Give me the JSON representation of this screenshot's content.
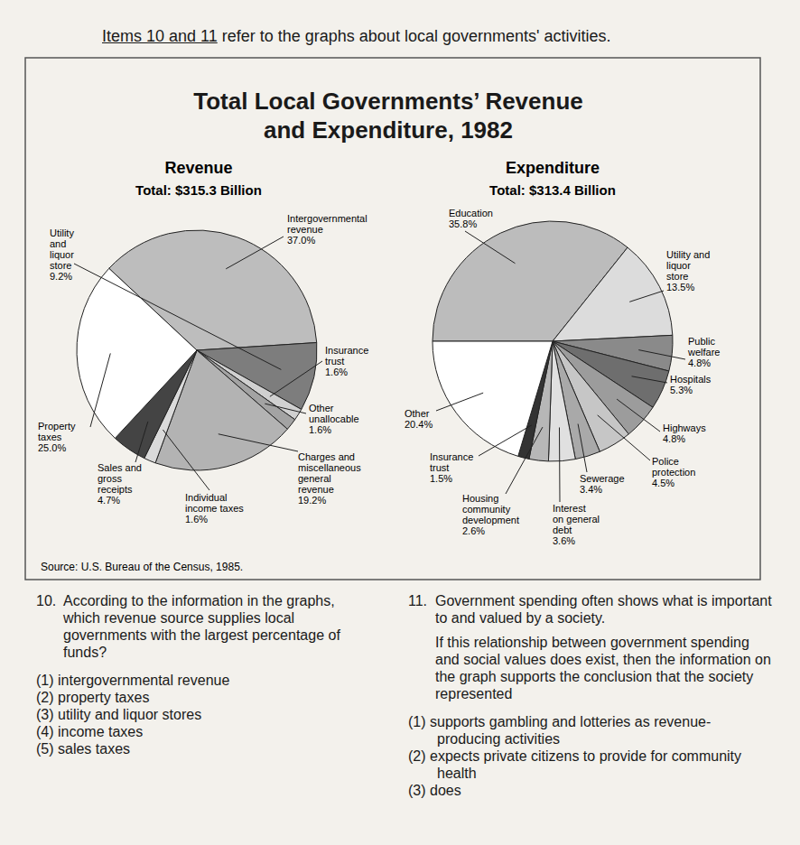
{
  "page": {
    "header_underlined": "Items 10 and 11",
    "header_rest": "refer to the graphs about local governments' activities.",
    "title": "Total Local Governments’ Revenue and Expenditure, 1982",
    "source": "Source: U.S. Bureau of the Census, 1985."
  },
  "chart_data": [
    {
      "type": "pie",
      "title": "Revenue",
      "subtitle": "Total: $315.3 Billion",
      "categories": [
        "Intergovernmental revenue",
        "Utility and liquor store",
        "Insurance trust",
        "Other unallocable",
        "Charges and miscellaneous general revenue",
        "Individual income taxes",
        "Sales and gross receipts",
        "Property taxes"
      ],
      "values": [
        37.0,
        9.2,
        1.6,
        1.6,
        19.2,
        1.6,
        4.7,
        25.0
      ],
      "value_labels": [
        "37.0%",
        "9.2%",
        "1.6%",
        "1.6%",
        "19.2%",
        "1.6%",
        "4.7%",
        "25.0%"
      ],
      "colors": [
        "#bdbdbd",
        "#7d7d7d",
        "#d0d0d0",
        "#a3a3a3",
        "#b3b3b3",
        "#dadada",
        "#444444",
        "#ffffff"
      ],
      "data_labels": true
    },
    {
      "type": "pie",
      "title": "Expenditure",
      "subtitle": "Total: $313.4 Billion",
      "categories": [
        "Education",
        "Utility and liquor store",
        "Public welfare",
        "Hospitals",
        "Highways",
        "Police protection",
        "Sewerage",
        "Interest on general debt",
        "Housing community development",
        "Insurance trust",
        "Other"
      ],
      "values": [
        35.8,
        13.5,
        4.8,
        5.3,
        4.8,
        4.5,
        3.4,
        3.6,
        2.6,
        1.5,
        20.4
      ],
      "value_labels": [
        "35.8%",
        "13.5%",
        "4.8%",
        "5.3%",
        "4.8%",
        "4.5%",
        "3.4%",
        "3.6%",
        "2.6%",
        "1.5%",
        "20.4%"
      ],
      "colors": [
        "#bcbcbc",
        "#dcdcdc",
        "#8a8a8a",
        "#6e6e6e",
        "#9c9c9c",
        "#c6c6c6",
        "#a9a9a9",
        "#e0e0e0",
        "#b7b7b7",
        "#333333",
        "#ffffff"
      ],
      "data_labels": true
    }
  ],
  "questions": [
    {
      "number": "10.",
      "text": [
        "According to the information in the graphs, which revenue source supplies local governments with the largest percentage of funds?"
      ],
      "options": [
        "(1) intergovernmental revenue",
        "(2) property taxes",
        "(3) utility and liquor stores",
        "(4) income taxes",
        "(5) sales taxes"
      ]
    },
    {
      "number": "11.",
      "text": [
        "Government spending often shows what is important to and valued by a society.",
        "If this relationship between government spending and social values does exist, then the information on the graph supports the conclusion that the society represented"
      ],
      "options": [
        "(1) supports gambling and lotteries as revenue-producing activities",
        "(2) expects private citizens to provide for community health",
        "(3) does"
      ]
    }
  ]
}
